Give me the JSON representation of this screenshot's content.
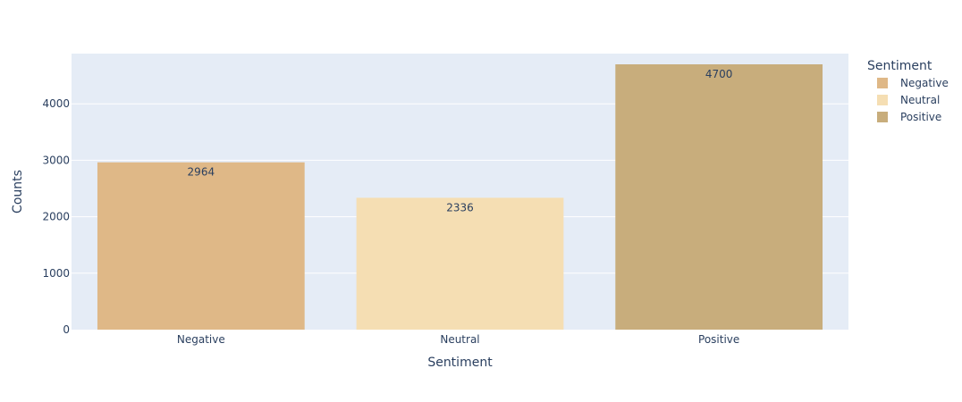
{
  "chart_data": {
    "type": "bar",
    "categories": [
      "Negative",
      "Neutral",
      "Positive"
    ],
    "values": [
      2964,
      2336,
      4700
    ],
    "colors": [
      "#dfb887",
      "#f5deb3",
      "#c8ad7c"
    ],
    "xlabel": "Sentiment",
    "ylabel": "Counts",
    "ylim": [
      0,
      4890
    ],
    "yticks": [
      0,
      1000,
      2000,
      3000,
      4000
    ],
    "grid": true,
    "plot_background": "#e5ecf6",
    "legend": {
      "title": "Sentiment",
      "placement": "right",
      "entries": [
        "Negative",
        "Neutral",
        "Positive"
      ]
    }
  }
}
